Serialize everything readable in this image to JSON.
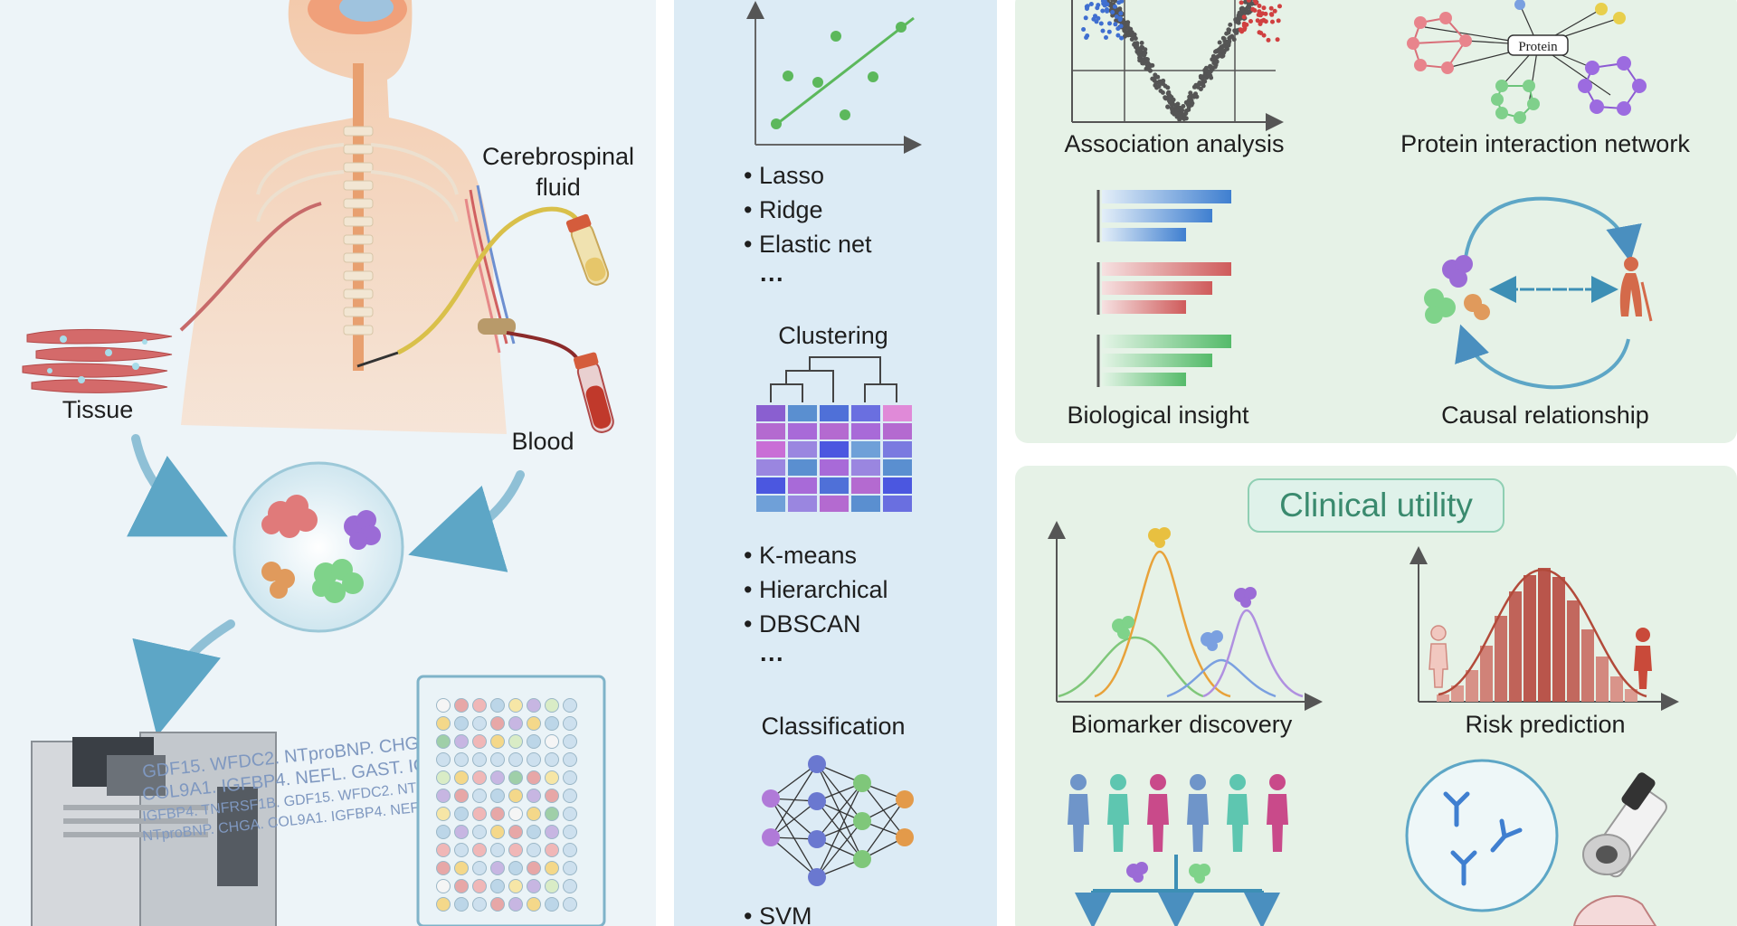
{
  "left_panel": {
    "labels": {
      "csf_line1": "Cerebrospinal",
      "csf_line2": "fluid",
      "tissue": "Tissue",
      "blood": "Blood"
    },
    "protein_text_lines": [
      "GDF15. WFDC2. NTproBNP. CHGA. COL",
      "COL9A1. IGFBP4. NEFL. GAST. IGFBP4",
      "IGFBP4. TNFRSF1B. GDF15. WFDC2. NTproBN",
      "NTproBNP. CHGA. COL9A1. IGFBP4. NEFL. G"
    ]
  },
  "middle_panel": {
    "regression_methods": [
      "• Lasso",
      "• Ridge",
      "• Elastic net",
      "···"
    ],
    "clustering_title": "Clustering",
    "clustering_methods": [
      "• K-means",
      "• Hierarchical",
      "• DBSCAN",
      "···"
    ],
    "classification_title": "Classification",
    "classification_methods": [
      "• SVM"
    ]
  },
  "right_top_panel": {
    "association_label": "Association analysis",
    "network_label": "Protein interaction network",
    "network_hub": "Protein",
    "insight_label": "Biological insight",
    "causal_label": "Causal relationship"
  },
  "right_bottom_panel": {
    "title": "Clinical utility",
    "biomarker_label": "Biomarker discovery",
    "risk_label": "Risk prediction"
  },
  "colors": {
    "left_bg": "#edf4f8",
    "middle_bg": "#dcebf5",
    "right_bg": "#e6f2e7",
    "accent_green": "#5cb85c",
    "title_box": "#dff2ea",
    "title_text": "#3a8a6e"
  }
}
